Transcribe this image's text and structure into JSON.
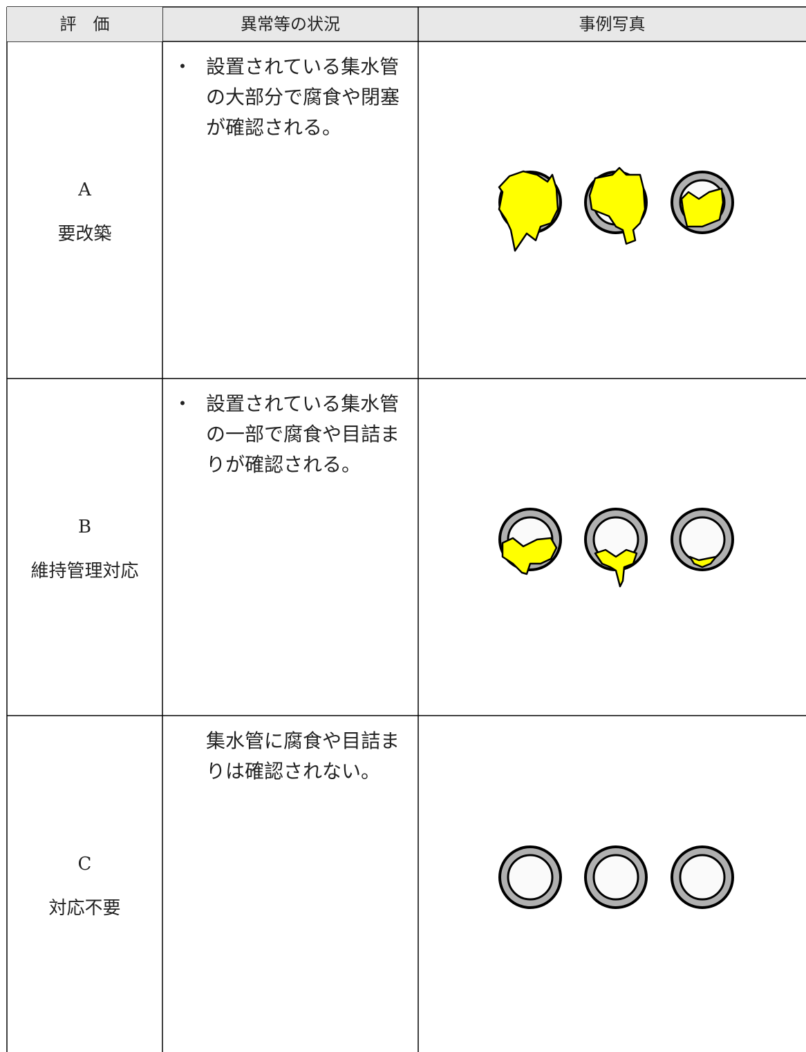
{
  "header": {
    "grade": "評　価",
    "condition": "異常等の状況",
    "photo": "事例写真"
  },
  "rows": [
    {
      "grade": "A",
      "label": "要改築",
      "bullet": "・",
      "text": "設置されている集水管の大部分で腐食や閉塞が確認される。"
    },
    {
      "grade": "B",
      "label": "維持管理対応",
      "bullet": "・",
      "text": "設置されている集水管の一部で腐食や目詰まりが確認される。"
    },
    {
      "grade": "C",
      "label": "対応不要",
      "text": "集水管に腐食や目詰まりは確認されない。"
    }
  ]
}
